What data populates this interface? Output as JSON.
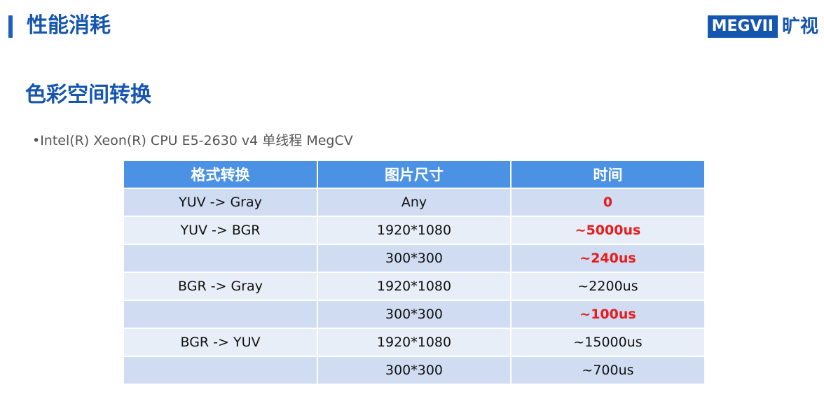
{
  "header": {
    "title": "性能消耗",
    "logo_text": "MEGVII",
    "logo_cn": "旷视"
  },
  "section": {
    "title": "色彩空间转换",
    "bullet": "•Intel(R) Xeon(R) CPU E5-2630 v4 单线程 MegCV"
  },
  "table": {
    "headers": [
      "格式转换",
      "图片尺寸",
      "时间"
    ],
    "rows": [
      {
        "conversion": "YUV -> Gray",
        "size": "Any",
        "time": "0",
        "highlight": true
      },
      {
        "conversion": "YUV -> BGR",
        "size": "1920*1080",
        "time": "~5000us",
        "highlight": true
      },
      {
        "conversion": "",
        "size": "300*300",
        "time": "~240us",
        "highlight": true
      },
      {
        "conversion": "BGR -> Gray",
        "size": "1920*1080",
        "time": "~2200us",
        "highlight": false
      },
      {
        "conversion": "",
        "size": "300*300",
        "time": "~100us",
        "highlight": true
      },
      {
        "conversion": "BGR -> YUV",
        "size": "1920*1080",
        "time": "~15000us",
        "highlight": false
      },
      {
        "conversion": "",
        "size": "300*300",
        "time": "~700us",
        "highlight": false
      }
    ]
  },
  "colors": {
    "brand": "#1556b0",
    "table_header": "#4c92e4",
    "highlight": "#e81c1c"
  }
}
